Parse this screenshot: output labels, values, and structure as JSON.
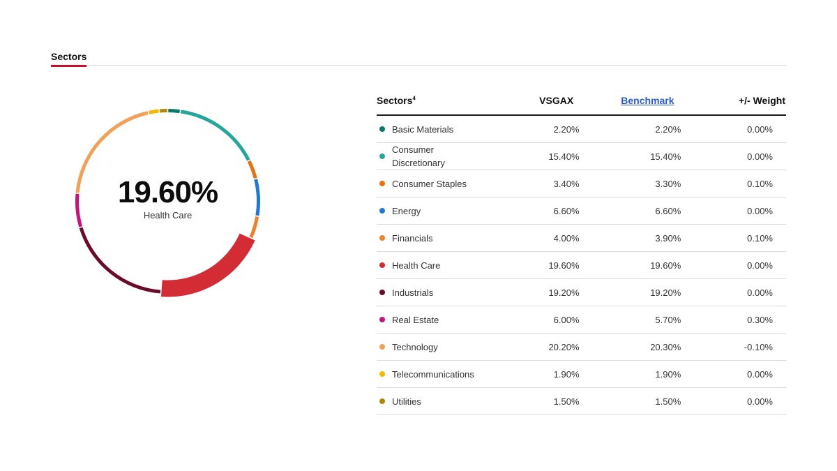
{
  "tabs": [
    {
      "label": "Sectors"
    }
  ],
  "donut": {
    "center_value": "19.60%",
    "center_label": "Health Care",
    "highlight_index": 5
  },
  "table": {
    "headers": {
      "sector": "Sectors",
      "sector_footnote": "4",
      "fund": "VSGAX",
      "benchmark": "Benchmark",
      "weight": "+/- Weight"
    },
    "rows": [
      {
        "name": "Basic Materials",
        "fund": "2.20%",
        "benchmark": "2.20%",
        "weight": "0.00%",
        "color": "#0a7a6b"
      },
      {
        "name": "Consumer Discretionary",
        "fund": "15.40%",
        "benchmark": "15.40%",
        "weight": "0.00%",
        "color": "#26a69a"
      },
      {
        "name": "Consumer Staples",
        "fund": "3.40%",
        "benchmark": "3.30%",
        "weight": "0.10%",
        "color": "#e8700f"
      },
      {
        "name": "Energy",
        "fund": "6.60%",
        "benchmark": "6.60%",
        "weight": "0.00%",
        "color": "#1e78dc"
      },
      {
        "name": "Financials",
        "fund": "4.00%",
        "benchmark": "3.90%",
        "weight": "0.10%",
        "color": "#f0822a"
      },
      {
        "name": "Health Care",
        "fund": "19.60%",
        "benchmark": "19.60%",
        "weight": "0.00%",
        "color": "#d32c35"
      },
      {
        "name": "Industrials",
        "fund": "19.20%",
        "benchmark": "19.20%",
        "weight": "0.00%",
        "color": "#6b0a2a"
      },
      {
        "name": "Real Estate",
        "fund": "6.00%",
        "benchmark": "5.70%",
        "weight": "0.30%",
        "color": "#c8137d"
      },
      {
        "name": "Technology",
        "fund": "20.20%",
        "benchmark": "20.30%",
        "weight": "-0.10%",
        "color": "#f2a055"
      },
      {
        "name": "Telecommunications",
        "fund": "1.90%",
        "benchmark": "1.90%",
        "weight": "0.00%",
        "color": "#f5b800"
      },
      {
        "name": "Utilities",
        "fund": "1.50%",
        "benchmark": "1.50%",
        "weight": "0.00%",
        "color": "#b5860d"
      }
    ]
  }
}
